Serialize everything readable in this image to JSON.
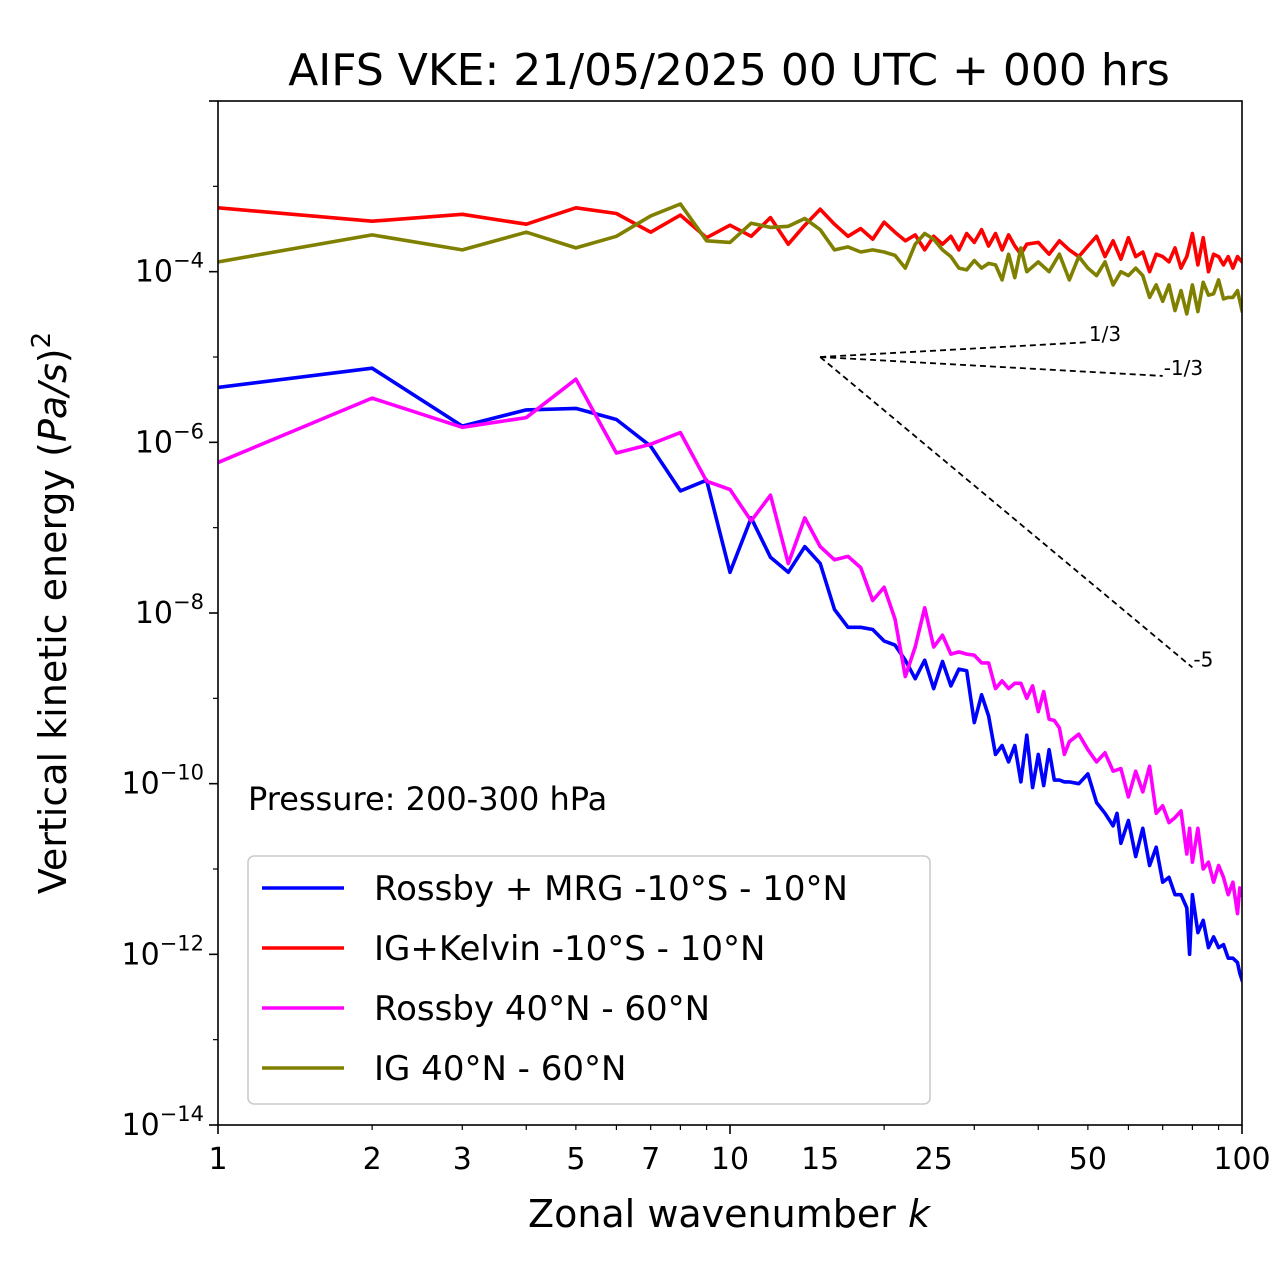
{
  "chart_data": {
    "type": "line",
    "title": "AIFS VKE: 21/05/2025 00 UTC + 000 hrs",
    "xlabel": "Zonal wavenumber k",
    "xlabel_main": "Zonal wavenumber ",
    "xlabel_var": "k",
    "ylabel": "Vertical kinetic energy (Pa/s)^2",
    "ylabel_main": "Vertical kinetic energy (",
    "ylabel_var": "Pa/s",
    "ylabel_close": ")",
    "ylabel_exp": "2",
    "x_scale": "log",
    "y_scale": "log",
    "xlim": [
      1,
      100
    ],
    "ylim": [
      1e-14,
      0.01
    ],
    "x_ticks": [
      1,
      2,
      3,
      5,
      7,
      10,
      15,
      25,
      50,
      100
    ],
    "x_tick_labels": [
      "1",
      "2",
      "3",
      "5",
      "7",
      "10",
      "15",
      "25",
      "50",
      "100"
    ],
    "y_ticks": [
      {
        "value": 0.0001,
        "base": "10",
        "exp": "−4"
      },
      {
        "value": 1e-06,
        "base": "10",
        "exp": "−6"
      },
      {
        "value": 1e-08,
        "base": "10",
        "exp": "−8"
      },
      {
        "value": 1e-10,
        "base": "10",
        "exp": "−10"
      },
      {
        "value": 1e-12,
        "base": "10",
        "exp": "−12"
      },
      {
        "value": 1e-14,
        "base": "10",
        "exp": "−14"
      }
    ],
    "grid": false,
    "legend_placement": "lower-left",
    "annotation": "Pressure: 200-300 hPa",
    "reference_slopes": [
      {
        "label": "1/3",
        "x": [
          15,
          50
        ],
        "y": [
          1e-05,
          1.49e-05
        ]
      },
      {
        "label": "-1/3",
        "x": [
          15,
          70
        ],
        "y": [
          1e-05,
          6e-06
        ]
      },
      {
        "label": "-5",
        "x": [
          15,
          80
        ],
        "y": [
          1e-05,
          2.3e-09
        ]
      }
    ],
    "series": [
      {
        "name": "Rossby + MRG -10°S - 10°N",
        "color": "#0000ff",
        "points": [
          [
            1,
            4.4e-06
          ],
          [
            2,
            7.4e-06
          ],
          [
            3,
            1.55e-06
          ],
          [
            4,
            2.4e-06
          ],
          [
            5,
            2.5e-06
          ],
          [
            6,
            1.85e-06
          ],
          [
            7,
            9e-07
          ],
          [
            8,
            2.7e-07
          ],
          [
            9,
            3.6e-07
          ],
          [
            10,
            3e-08
          ],
          [
            11,
            1.3e-07
          ],
          [
            12,
            4.5e-08
          ],
          [
            13,
            3e-08
          ],
          [
            14,
            6e-08
          ],
          [
            15,
            3.8e-08
          ],
          [
            16,
            1.1e-08
          ],
          [
            17,
            6.8e-09
          ],
          [
            18,
            6.8e-09
          ],
          [
            19,
            6.4e-09
          ],
          [
            20,
            4.7e-09
          ],
          [
            21,
            4.2e-09
          ],
          [
            22,
            2.8e-09
          ],
          [
            23,
            1.7e-09
          ],
          [
            24,
            2.8e-09
          ],
          [
            25,
            1.3e-09
          ],
          [
            26,
            2.7e-09
          ],
          [
            27,
            1.4e-09
          ],
          [
            28,
            2.2e-09
          ],
          [
            29,
            2.1e-09
          ],
          [
            30,
            5.2e-10
          ],
          [
            31,
            1.1e-09
          ],
          [
            32,
            6.2e-10
          ],
          [
            33,
            2.2e-10
          ],
          [
            34,
            2.8e-10
          ],
          [
            35,
            1.8e-10
          ],
          [
            36,
            2.8e-10
          ],
          [
            37,
            1.05e-10
          ],
          [
            38,
            3.7e-10
          ],
          [
            39,
            9e-11
          ],
          [
            40,
            2.2e-10
          ],
          [
            41,
            9.5e-11
          ],
          [
            42,
            2.5e-10
          ],
          [
            43,
            1.1e-10
          ],
          [
            44,
            1.1e-10
          ],
          [
            45,
            1.05e-10
          ],
          [
            46,
            1.05e-10
          ],
          [
            48,
            1e-10
          ],
          [
            50,
            1.3e-10
          ],
          [
            52,
            6e-11
          ],
          [
            54,
            4.5e-11
          ],
          [
            56,
            3.2e-11
          ],
          [
            57,
            4.5e-11
          ],
          [
            58,
            2e-11
          ],
          [
            60,
            3.7e-11
          ],
          [
            62,
            1.4e-11
          ],
          [
            64,
            3e-11
          ],
          [
            66,
            1.1e-11
          ],
          [
            68,
            1.8e-11
          ],
          [
            70,
            7e-12
          ],
          [
            72,
            8e-12
          ],
          [
            74,
            5e-12
          ],
          [
            76,
            5e-12
          ],
          [
            78,
            3.5e-12
          ],
          [
            79,
            1e-12
          ],
          [
            80,
            5e-12
          ],
          [
            82,
            1.8e-12
          ],
          [
            84,
            2.5e-12
          ],
          [
            86,
            1.2e-12
          ],
          [
            88,
            1.6e-12
          ],
          [
            90,
            1.2e-12
          ],
          [
            92,
            1.3e-12
          ],
          [
            94,
            9e-13
          ],
          [
            96,
            9e-13
          ],
          [
            98,
            8e-13
          ],
          [
            99,
            6e-13
          ],
          [
            100,
            5e-13
          ]
        ]
      },
      {
        "name": "IG+Kelvin -10°S - 10°N",
        "color": "#ff0000",
        "points": [
          [
            1,
            0.00056
          ],
          [
            2,
            0.00039
          ],
          [
            3,
            0.00047
          ],
          [
            4,
            0.00036
          ],
          [
            5,
            0.00056
          ],
          [
            6,
            0.00048
          ],
          [
            7,
            0.00029
          ],
          [
            8,
            0.00046
          ],
          [
            9,
            0.00025
          ],
          [
            10,
            0.00035
          ],
          [
            11,
            0.00026
          ],
          [
            12,
            0.00043
          ],
          [
            13,
            0.00021
          ],
          [
            14,
            0.00035
          ],
          [
            15,
            0.00054
          ],
          [
            16,
            0.00036
          ],
          [
            17,
            0.00026
          ],
          [
            18,
            0.00032
          ],
          [
            19,
            0.00024
          ],
          [
            20,
            0.00038
          ],
          [
            21,
            0.00029
          ],
          [
            22,
            0.00023
          ],
          [
            23,
            0.00027
          ],
          [
            24,
            0.00018
          ],
          [
            25,
            0.00026
          ],
          [
            26,
            0.00021
          ],
          [
            27,
            0.00026
          ],
          [
            28,
            0.00018
          ],
          [
            29,
            0.00028
          ],
          [
            30,
            0.00022
          ],
          [
            31,
            0.00031
          ],
          [
            32,
            0.0002
          ],
          [
            33,
            0.00028
          ],
          [
            34,
            0.00018
          ],
          [
            35,
            0.00027
          ],
          [
            36,
            0.0002
          ],
          [
            37,
            0.00016
          ],
          [
            38,
            0.00021
          ],
          [
            40,
            0.00022
          ],
          [
            42,
            0.00016
          ],
          [
            44,
            0.00023
          ],
          [
            46,
            0.00018
          ],
          [
            48,
            0.00015
          ],
          [
            50,
            0.0002
          ],
          [
            52,
            0.00026
          ],
          [
            54,
            0.00015
          ],
          [
            56,
            0.00023
          ],
          [
            58,
            0.00014
          ],
          [
            60,
            0.00025
          ],
          [
            62,
            0.00015
          ],
          [
            64,
            0.00017
          ],
          [
            66,
            0.0001
          ],
          [
            68,
            0.00016
          ],
          [
            70,
            0.00015
          ],
          [
            72,
            0.00013
          ],
          [
            74,
            0.00019
          ],
          [
            76,
            0.00011
          ],
          [
            78,
            0.00015
          ],
          [
            80,
            0.00028
          ],
          [
            82,
            0.00012
          ],
          [
            84,
            0.00025
          ],
          [
            86,
            0.0001
          ],
          [
            88,
            0.00016
          ],
          [
            90,
            0.00015
          ],
          [
            92,
            0.00012
          ],
          [
            94,
            0.00015
          ],
          [
            96,
            0.00011
          ],
          [
            98,
            0.00015
          ],
          [
            100,
            0.00013
          ]
        ]
      },
      {
        "name": "Rossby 40°N - 60°N",
        "color": "#ff00ff",
        "points": [
          [
            1,
            5.8e-07
          ],
          [
            2,
            3.3e-06
          ],
          [
            3,
            1.5e-06
          ],
          [
            4,
            1.95e-06
          ],
          [
            5,
            5.5e-06
          ],
          [
            6,
            7.5e-07
          ],
          [
            7,
            9.5e-07
          ],
          [
            8,
            1.3e-06
          ],
          [
            9,
            3.5e-07
          ],
          [
            10,
            2.8e-07
          ],
          [
            11,
            1.2e-07
          ],
          [
            12,
            2.4e-07
          ],
          [
            13,
            3.8e-08
          ],
          [
            14,
            1.3e-07
          ],
          [
            15,
            6e-08
          ],
          [
            16,
            4.2e-08
          ],
          [
            17,
            4.6e-08
          ],
          [
            18,
            3.4e-08
          ],
          [
            19,
            1.4e-08
          ],
          [
            20,
            2e-08
          ],
          [
            21,
            8.5e-09
          ],
          [
            22,
            1.8e-09
          ],
          [
            23,
            4e-09
          ],
          [
            24,
            1.15e-08
          ],
          [
            25,
            4e-09
          ],
          [
            26,
            5.5e-09
          ],
          [
            27,
            3.3e-09
          ],
          [
            28,
            3.5e-09
          ],
          [
            29,
            3.3e-09
          ],
          [
            30,
            3.2e-09
          ],
          [
            31,
            2.6e-09
          ],
          [
            32,
            2.6e-09
          ],
          [
            33,
            1.3e-09
          ],
          [
            34,
            1.6e-09
          ],
          [
            35,
            1.3e-09
          ],
          [
            36,
            1.5e-09
          ],
          [
            37,
            1.5e-09
          ],
          [
            38,
            1e-09
          ],
          [
            39,
            1.4e-09
          ],
          [
            40,
            7e-10
          ],
          [
            41,
            1.2e-09
          ],
          [
            42,
            5.7e-10
          ],
          [
            43,
            5.5e-10
          ],
          [
            44,
            4.5e-10
          ],
          [
            45,
            2.2e-10
          ],
          [
            46,
            3.1e-10
          ],
          [
            48,
            3.8e-10
          ],
          [
            50,
            2.5e-10
          ],
          [
            52,
            1.8e-10
          ],
          [
            54,
            2.3e-10
          ],
          [
            56,
            1.4e-10
          ],
          [
            58,
            1.5e-10
          ],
          [
            60,
            7e-11
          ],
          [
            62,
            1.4e-10
          ],
          [
            64,
            8e-11
          ],
          [
            66,
            1.6e-10
          ],
          [
            68,
            4.5e-11
          ],
          [
            70,
            5.5e-11
          ],
          [
            72,
            3.5e-11
          ],
          [
            74,
            4e-11
          ],
          [
            76,
            4.8e-11
          ],
          [
            78,
            1.5e-11
          ],
          [
            79,
            3e-11
          ],
          [
            80,
            1.2e-11
          ],
          [
            82,
            3e-11
          ],
          [
            84,
            1e-11
          ],
          [
            86,
            1.2e-11
          ],
          [
            88,
            7e-12
          ],
          [
            90,
            1.1e-11
          ],
          [
            92,
            8e-12
          ],
          [
            94,
            5e-12
          ],
          [
            96,
            7e-12
          ],
          [
            98,
            3e-12
          ],
          [
            99,
            6e-12
          ],
          [
            100,
            5e-12
          ]
        ]
      },
      {
        "name": "IG 40°N - 60°N",
        "color": "#808000",
        "points": [
          [
            1,
            0.00013
          ],
          [
            2,
            0.00027
          ],
          [
            3,
            0.00018
          ],
          [
            4,
            0.00029
          ],
          [
            5,
            0.00019
          ],
          [
            6,
            0.00026
          ],
          [
            7,
            0.00045
          ],
          [
            8,
            0.00062
          ],
          [
            9,
            0.00023
          ],
          [
            10,
            0.00022
          ],
          [
            11,
            0.00037
          ],
          [
            12,
            0.00033
          ],
          [
            13,
            0.00034
          ],
          [
            14,
            0.00042
          ],
          [
            15,
            0.00031
          ],
          [
            16,
            0.00018
          ],
          [
            17,
            0.000195
          ],
          [
            18,
            0.00017
          ],
          [
            19,
            0.00018
          ],
          [
            20,
            0.00017
          ],
          [
            21,
            0.000155
          ],
          [
            22,
            0.00011
          ],
          [
            23,
            0.00021
          ],
          [
            24,
            0.00028
          ],
          [
            25,
            0.00024
          ],
          [
            26,
            0.00018
          ],
          [
            27,
            0.00015
          ],
          [
            28,
            0.00011
          ],
          [
            29,
            0.000105
          ],
          [
            30,
            0.000135
          ],
          [
            31,
            0.00011
          ],
          [
            32,
            0.000125
          ],
          [
            33,
            0.00012
          ],
          [
            34,
            8e-05
          ],
          [
            35,
            0.00016
          ],
          [
            36,
            8.5e-05
          ],
          [
            37,
            0.00019
          ],
          [
            38,
            0.0001
          ],
          [
            40,
            0.00013
          ],
          [
            42,
            0.0001
          ],
          [
            44,
            0.00016
          ],
          [
            46,
            8e-05
          ],
          [
            48,
            0.00015
          ],
          [
            50,
            0.00011
          ],
          [
            52,
            9e-05
          ],
          [
            54,
            0.00013
          ],
          [
            56,
            7e-05
          ],
          [
            58,
            0.0001
          ],
          [
            60,
            9e-05
          ],
          [
            62,
            0.00011
          ],
          [
            64,
            9e-05
          ],
          [
            66,
            5e-05
          ],
          [
            68,
            7e-05
          ],
          [
            70,
            4.5e-05
          ],
          [
            72,
            7e-05
          ],
          [
            74,
            3.5e-05
          ],
          [
            76,
            6e-05
          ],
          [
            78,
            3.2e-05
          ],
          [
            80,
            7e-05
          ],
          [
            82,
            3.4e-05
          ],
          [
            84,
            7.5e-05
          ],
          [
            86,
            5.3e-05
          ],
          [
            88,
            5.5e-05
          ],
          [
            90,
            8e-05
          ],
          [
            92,
            4.8e-05
          ],
          [
            94,
            5e-05
          ],
          [
            96,
            5e-05
          ],
          [
            98,
            6e-05
          ],
          [
            100,
            3.5e-05
          ]
        ]
      }
    ]
  }
}
